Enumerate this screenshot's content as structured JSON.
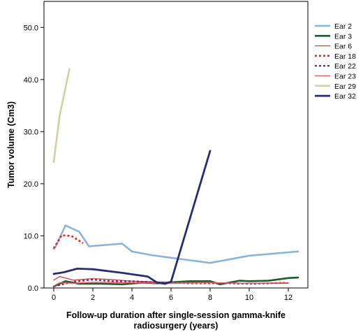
{
  "chart_data": {
    "type": "line",
    "title": "",
    "xlabel_lines": [
      "Follow-up duration after single-session gamma-knife",
      "radiosurgery (years)"
    ],
    "ylabel": "Tumor volume (Cm3)",
    "xlim": [
      -0.5,
      13
    ],
    "ylim": [
      0,
      55
    ],
    "xticks": [
      0,
      2,
      4,
      6,
      8,
      10,
      12
    ],
    "xtick_labels": [
      "0",
      "2",
      "4",
      "6",
      "8",
      "10",
      "12"
    ],
    "yticks": [
      0,
      10,
      20,
      30,
      40,
      50
    ],
    "ytick_labels": [
      "0.0",
      "10.0",
      "20.0",
      "30.0",
      "40.0",
      "50.0"
    ],
    "grid": false,
    "legend_position": "right",
    "series": [
      {
        "name": "Ear 2",
        "color": "#8ab4dc",
        "width": 2.6,
        "dash": "",
        "x": [
          0,
          0.1,
          0.6,
          1.3,
          1.8,
          3.5,
          4.0,
          5.0,
          6.0,
          7.0,
          8.0,
          10.0,
          12.5
        ],
        "y": [
          7.5,
          8.0,
          12.0,
          10.8,
          8.0,
          8.5,
          7.0,
          6.3,
          5.8,
          5.3,
          4.8,
          6.2,
          7.0
        ]
      },
      {
        "name": "Ear 3",
        "color": "#1a5e2a",
        "width": 2.6,
        "dash": "",
        "x": [
          0,
          0.6,
          1.3,
          2.5,
          3.5,
          4.5,
          5.3,
          6.0,
          7.0,
          8.0,
          8.5,
          9.5,
          10.0,
          11.0,
          12.0,
          12.5
        ],
        "y": [
          0.3,
          1.3,
          0.8,
          0.8,
          0.7,
          1.0,
          0.9,
          1.1,
          1.3,
          1.3,
          0.7,
          1.4,
          1.3,
          1.4,
          1.9,
          2.0
        ]
      },
      {
        "name": "Ear 6",
        "color": "#cc4b4b",
        "width": 1.4,
        "dash": "",
        "x": [
          0,
          0.3,
          1.0,
          2.0,
          3.0,
          4.0,
          5.0,
          6.0,
          8.0,
          10.0,
          12.0
        ],
        "y": [
          1.5,
          2.2,
          1.5,
          1.8,
          1.6,
          1.3,
          1.2,
          1.1,
          1.0,
          0.9,
          0.9
        ]
      },
      {
        "name": "Ear 18",
        "color": "#d8332f",
        "width": 2.8,
        "dash": "3,3",
        "x": [
          0,
          0.4,
          0.9,
          1.5
        ],
        "y": [
          7.6,
          10.1,
          10.0,
          8.6
        ]
      },
      {
        "name": "Ear 22",
        "color": "#7a2a7a",
        "width": 2.4,
        "dash": "3,3",
        "x": [
          0,
          1.0,
          2.0,
          3.0,
          4.0,
          5.0,
          6.0,
          7.0,
          8.0,
          9.0,
          10.0,
          11.0,
          11.8
        ],
        "y": [
          0.3,
          1.2,
          1.6,
          1.3,
          1.3,
          1.1,
          1.0,
          0.9,
          0.9,
          0.9,
          0.8,
          0.9,
          1.0
        ]
      },
      {
        "name": "Ear 23",
        "color": "#e06060",
        "width": 1.4,
        "dash": "",
        "x": [
          0,
          0.3,
          1.0,
          2.0,
          4.0,
          6.0,
          8.0,
          10.0,
          12.0
        ],
        "y": [
          0.4,
          1.0,
          0.9,
          1.1,
          1.0,
          0.9,
          1.0,
          0.9,
          1.0
        ]
      },
      {
        "name": "Ear 29",
        "color": "#d2cfa0",
        "width": 2.6,
        "dash": "",
        "x": [
          0,
          0.3,
          0.8
        ],
        "y": [
          24.2,
          33.0,
          42.0
        ]
      },
      {
        "name": "Ear 32",
        "color": "#2a2c72",
        "width": 2.8,
        "dash": "",
        "x": [
          0,
          0.5,
          1.2,
          2.0,
          3.5,
          4.8,
          5.3,
          5.7,
          6.0,
          8.0
        ],
        "y": [
          2.7,
          3.0,
          3.7,
          3.6,
          2.9,
          2.2,
          1.0,
          0.8,
          1.2,
          26.3
        ]
      }
    ]
  }
}
